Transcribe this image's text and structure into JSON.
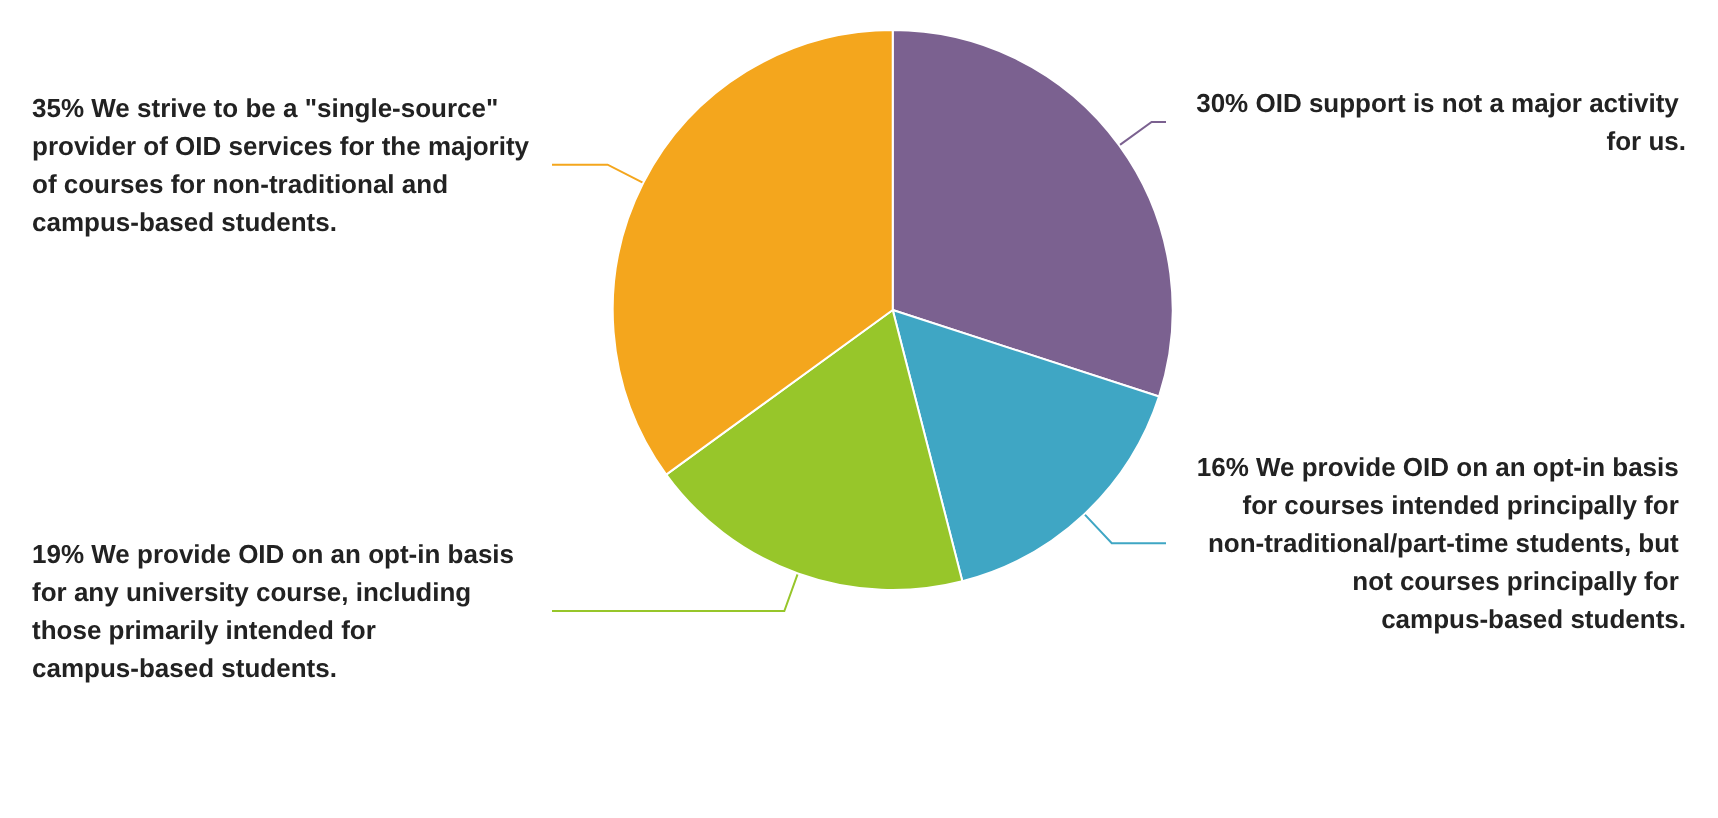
{
  "chart_data": {
    "type": "pie",
    "categories": [
      "OID support is not a major activity for us.",
      "We provide OID on an opt-in basis for courses intended principally for non-traditional/part-time students, but not courses principally for campus-based students.",
      "We provide OID on an opt-in basis for any university course, including those primarily intended for campus-based students.",
      "We strive to be a \"single-source\" provider of OID services for the majority of courses for non-traditional and campus-based students."
    ],
    "values": [
      30,
      16,
      19,
      35
    ],
    "value_labels": [
      "30%",
      "16%",
      "19%",
      "35%"
    ],
    "colors": [
      "#7b6190",
      "#3fa6c4",
      "#97c62a",
      "#f4a61d"
    ],
    "legend": false
  }
}
